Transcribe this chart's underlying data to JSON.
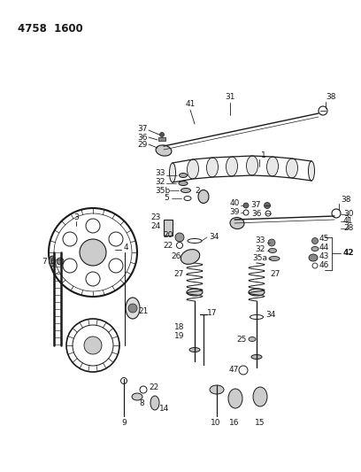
{
  "title": "4758  1600",
  "bg_color": "#ffffff",
  "line_color": "#1a1a1a",
  "title_fontsize": 8.5,
  "label_fontsize": 6.5,
  "fig_width": 4.08,
  "fig_height": 5.33,
  "dpi": 100
}
